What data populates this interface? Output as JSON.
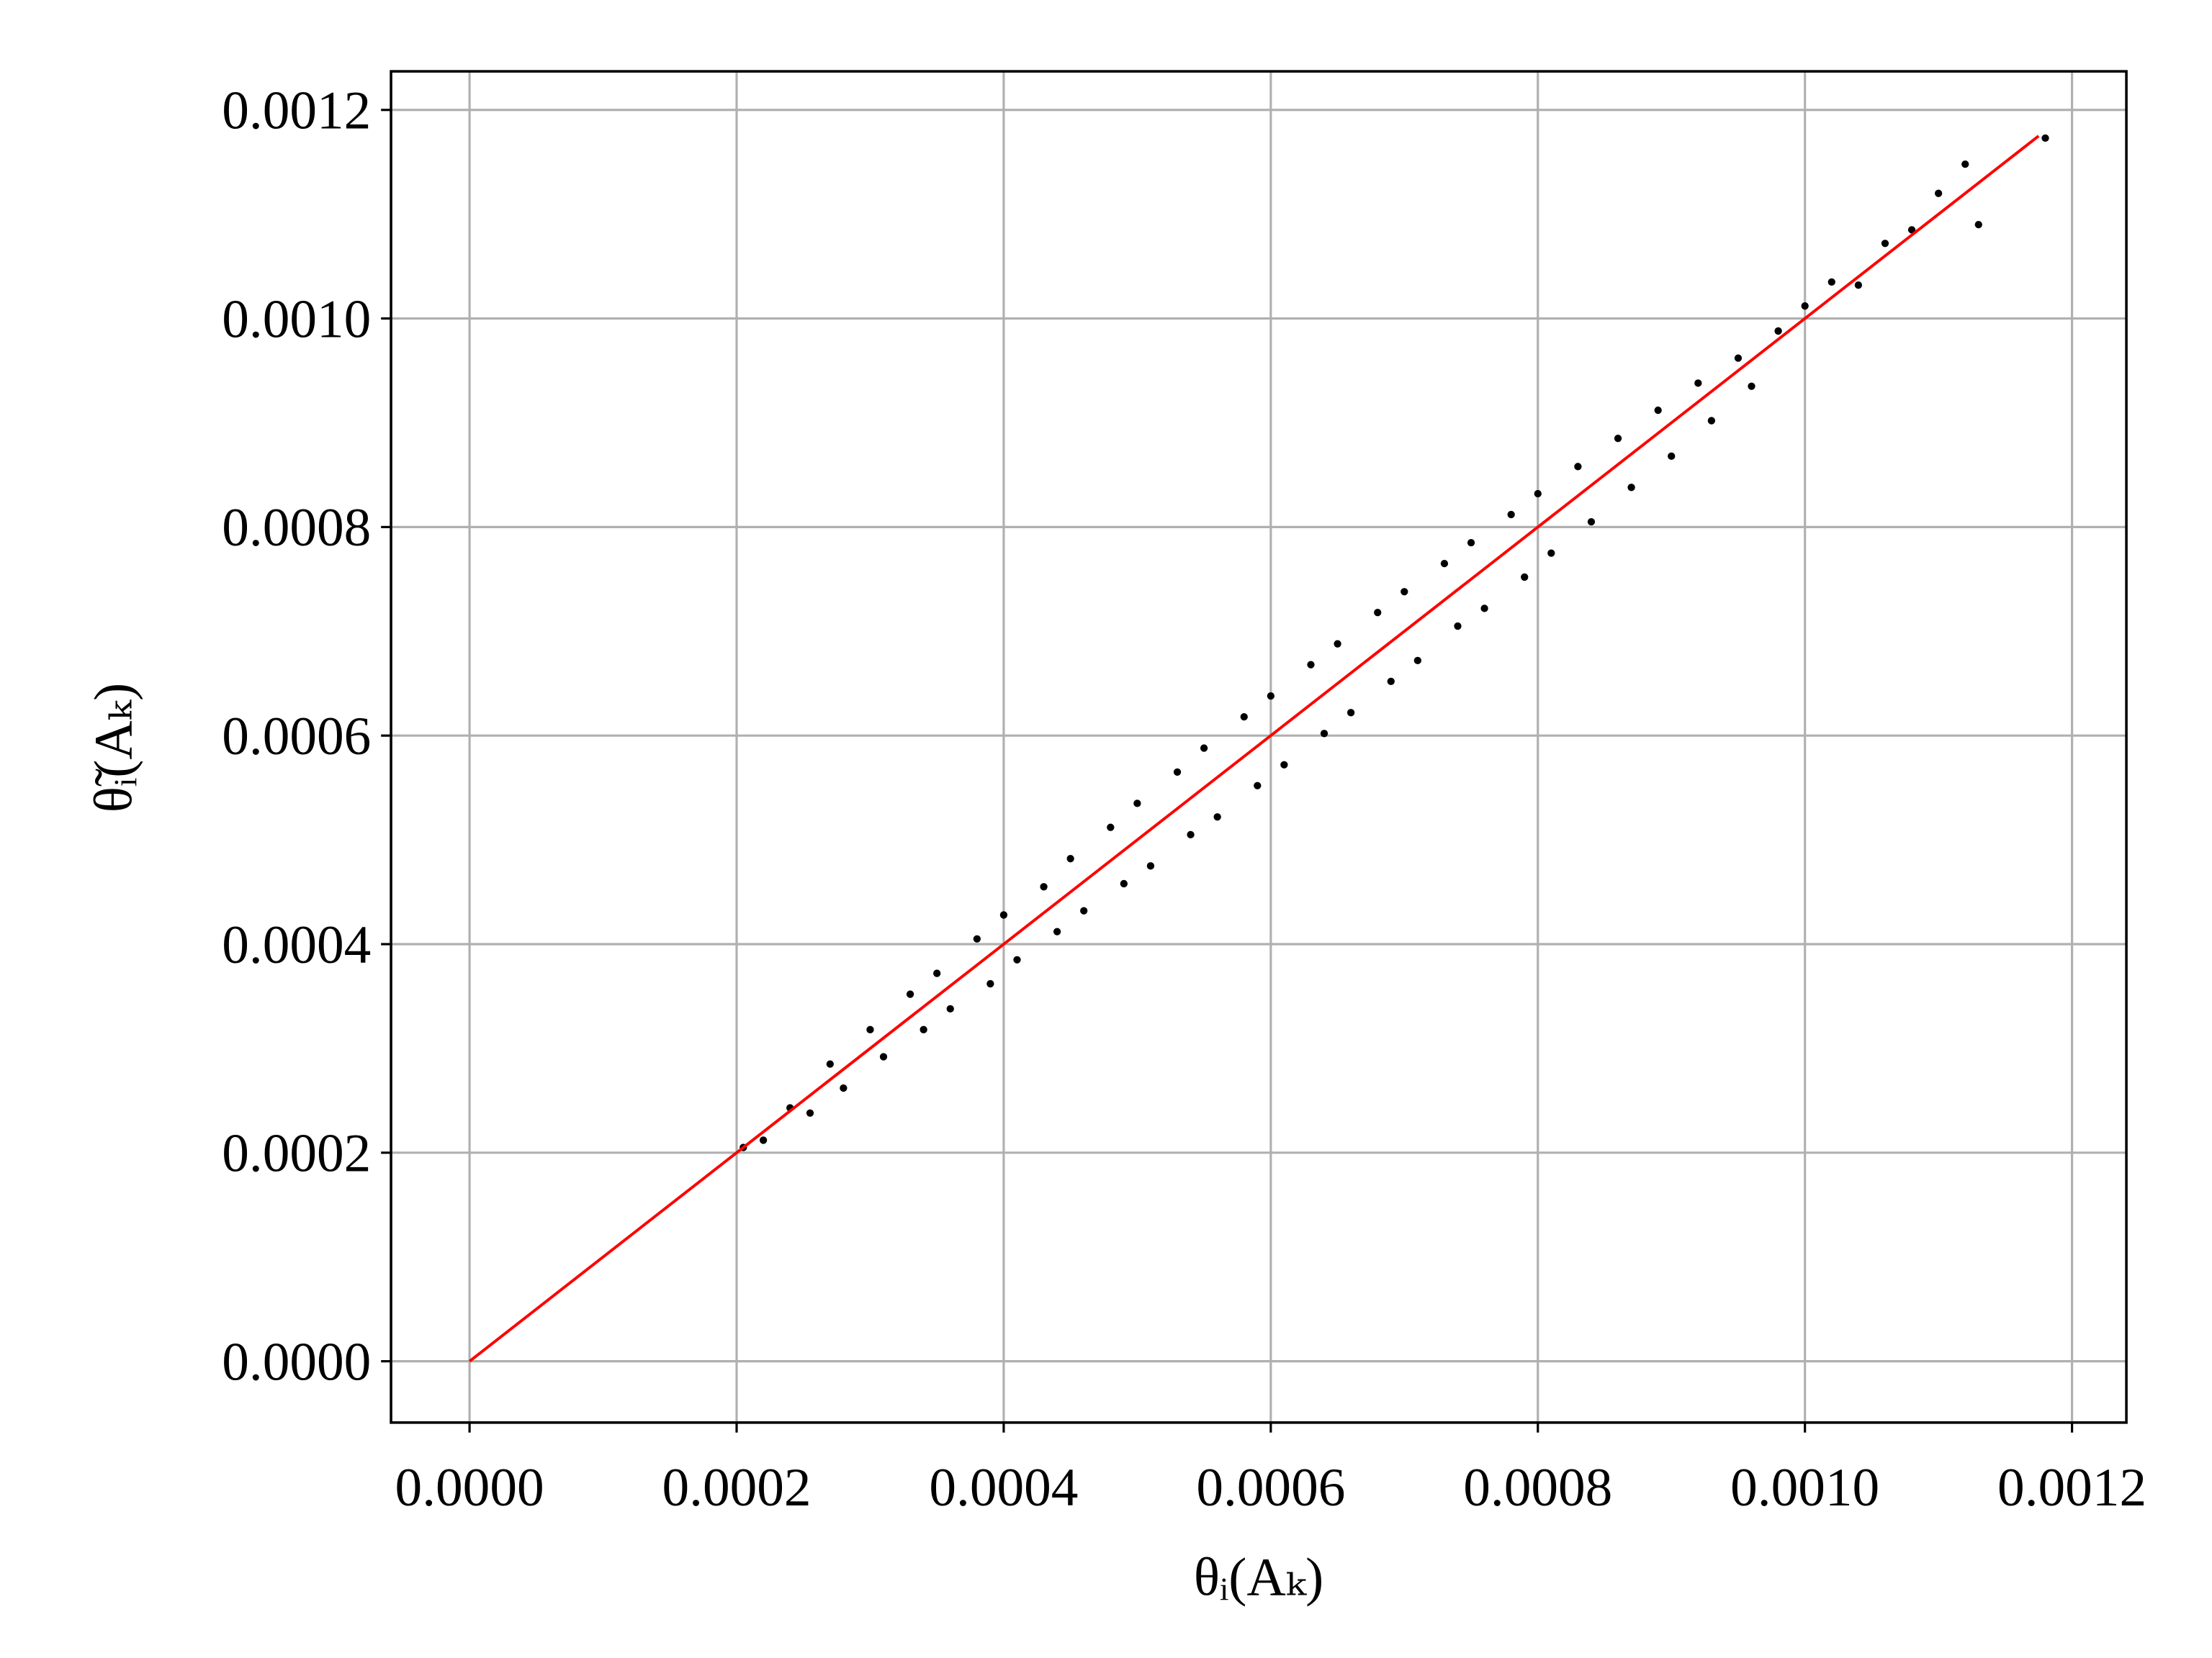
{
  "chart_data": {
    "type": "scatter",
    "xlabel": "θᵢ(Aₖ)",
    "ylabel": "θ̃ᵢ(Aₖ)",
    "xlim": [
      -5.88e-05,
      0.0012407
    ],
    "ylim": [
      -5.88e-05,
      0.001237
    ],
    "xticks": [
      {
        "value": 0,
        "label": "0.0000"
      },
      {
        "value": 0.0002,
        "label": "0.0002"
      },
      {
        "value": 0.0004,
        "label": "0.0004"
      },
      {
        "value": 0.0006,
        "label": "0.0006"
      },
      {
        "value": 0.0008,
        "label": "0.0008"
      },
      {
        "value": 0.001,
        "label": "0.0010"
      },
      {
        "value": 0.0012,
        "label": "0.0012"
      }
    ],
    "yticks": [
      {
        "value": 0,
        "label": "0.0000"
      },
      {
        "value": 0.0002,
        "label": "0.0002"
      },
      {
        "value": 0.0004,
        "label": "0.0004"
      },
      {
        "value": 0.0006,
        "label": "0.0006"
      },
      {
        "value": 0.0008,
        "label": "0.0008"
      },
      {
        "value": 0.001,
        "label": "0.0010"
      },
      {
        "value": 0.0012,
        "label": "0.0012"
      }
    ],
    "grid": true,
    "series": [
      {
        "type": "scatter",
        "color": "#000000",
        "x": [
          0.000205,
          0.00022,
          0.00024,
          0.000255,
          0.00027,
          0.00028,
          0.0003,
          0.00031,
          0.00033,
          0.00034,
          0.00035,
          0.00036,
          0.00038,
          0.00039,
          0.0004,
          0.00041,
          0.00043,
          0.00044,
          0.00045,
          0.00046,
          0.00048,
          0.00049,
          0.0005,
          0.00051,
          0.00053,
          0.00054,
          0.00055,
          0.00056,
          0.00058,
          0.00059,
          0.0006,
          0.00061,
          0.00063,
          0.00064,
          0.00065,
          0.00066,
          0.00068,
          0.00069,
          0.0007,
          0.00071,
          0.00073,
          0.00074,
          0.00075,
          0.00076,
          0.00078,
          0.00079,
          0.0008,
          0.00081,
          0.00083,
          0.00084,
          0.00086,
          0.00087,
          0.00089,
          0.0009,
          0.00092,
          0.00093,
          0.00095,
          0.00096,
          0.00098,
          0.001,
          0.00102,
          0.00104,
          0.00106,
          0.00108,
          0.0011,
          0.00112,
          0.00113,
          0.00118
        ],
        "y": [
          0.000205,
          0.000212,
          0.000243,
          0.000238,
          0.000285,
          0.000262,
          0.000318,
          0.000292,
          0.000352,
          0.000318,
          0.000372,
          0.000338,
          0.000405,
          0.000362,
          0.000428,
          0.000385,
          0.000455,
          0.000412,
          0.000482,
          0.000432,
          0.000512,
          0.000458,
          0.000535,
          0.000475,
          0.000565,
          0.000505,
          0.000588,
          0.000522,
          0.000618,
          0.000552,
          0.000638,
          0.000572,
          0.000668,
          0.000602,
          0.000688,
          0.000622,
          0.000718,
          0.000652,
          0.000738,
          0.000672,
          0.000765,
          0.000705,
          0.000785,
          0.000722,
          0.000812,
          0.000752,
          0.000832,
          0.000775,
          0.000858,
          0.000805,
          0.000885,
          0.000838,
          0.000912,
          0.000868,
          0.000938,
          0.000902,
          0.000962,
          0.000935,
          0.000988,
          0.001012,
          0.001035,
          0.001032,
          0.001072,
          0.001085,
          0.00112,
          0.001148,
          0.00109,
          0.001173
        ]
      },
      {
        "type": "line",
        "color": "#ff0000",
        "x": [
          0,
          0.001175
        ],
        "y": [
          0,
          0.001175
        ]
      }
    ]
  }
}
